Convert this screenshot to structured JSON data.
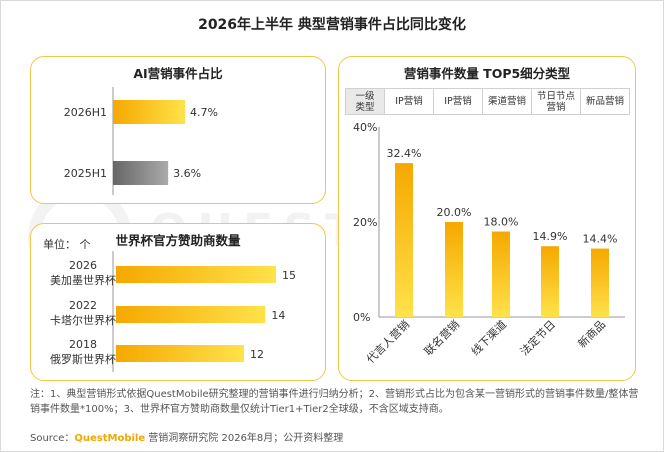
{
  "title": "2026年上半年 典型营销事件占比同比变化",
  "ai_panel": {
    "title": "AI营销事件占比",
    "chart_data": {
      "type": "bar",
      "orientation": "horizontal",
      "categories": [
        "2026H1",
        "2025H1"
      ],
      "values": [
        4.7,
        3.6
      ],
      "value_labels": [
        "4.7%",
        "3.6%"
      ],
      "unit": "%",
      "colors": [
        "#f7b500",
        "#7a7a7a"
      ]
    }
  },
  "worldcup_panel": {
    "title": "世界杯官方赞助商数量",
    "unit_label": "单位：  个",
    "chart_data": {
      "type": "bar",
      "orientation": "horizontal",
      "categories": [
        {
          "year": "2026",
          "name": "美加墨世界杯"
        },
        {
          "year": "2022",
          "name": "卡塔尔世界杯"
        },
        {
          "year": "2018",
          "name": "俄罗斯世界杯"
        }
      ],
      "values": [
        15,
        14,
        12
      ],
      "value_labels": [
        "15",
        "14",
        "12"
      ],
      "colors": [
        "#f7b500"
      ]
    }
  },
  "top5_panel": {
    "title": "营销事件数量 TOP5细分类型",
    "table_header": "一级\n类型",
    "table_cells": [
      "IP营销",
      "IP营销",
      "渠道营销",
      "节日节点\n营销",
      "新品营销"
    ],
    "chart_data": {
      "type": "bar",
      "categories": [
        "代言人营销",
        "联名营销",
        "线下渠道",
        "法定节日",
        "新商品"
      ],
      "values": [
        32.4,
        20.0,
        18.0,
        14.9,
        14.4
      ],
      "value_labels": [
        "32.4%",
        "20.0%",
        "18.0%",
        "14.9%",
        "14.4%"
      ],
      "yticks": [
        "40%",
        "20%",
        "0%"
      ],
      "ylim": [
        0,
        40
      ],
      "colors": [
        "#f7b500"
      ]
    }
  },
  "watermark": "QUESTMOBILE",
  "notes": "注：1、典型营销形式依据QuestMobile研究整理的营销事件进行归纳分析；2、营销形式占比为包含某一营销形式的营销事件数量/整体营销事件数量*100%；3、世界杯官方赞助商数量仅统计Tier1+Tier2全球级，不含区域支持商。",
  "source": {
    "prefix": "Source：",
    "brand": "QuestMobile",
    "suffix": " 营销洞察研究院 2026年8月；公开资料整理"
  }
}
